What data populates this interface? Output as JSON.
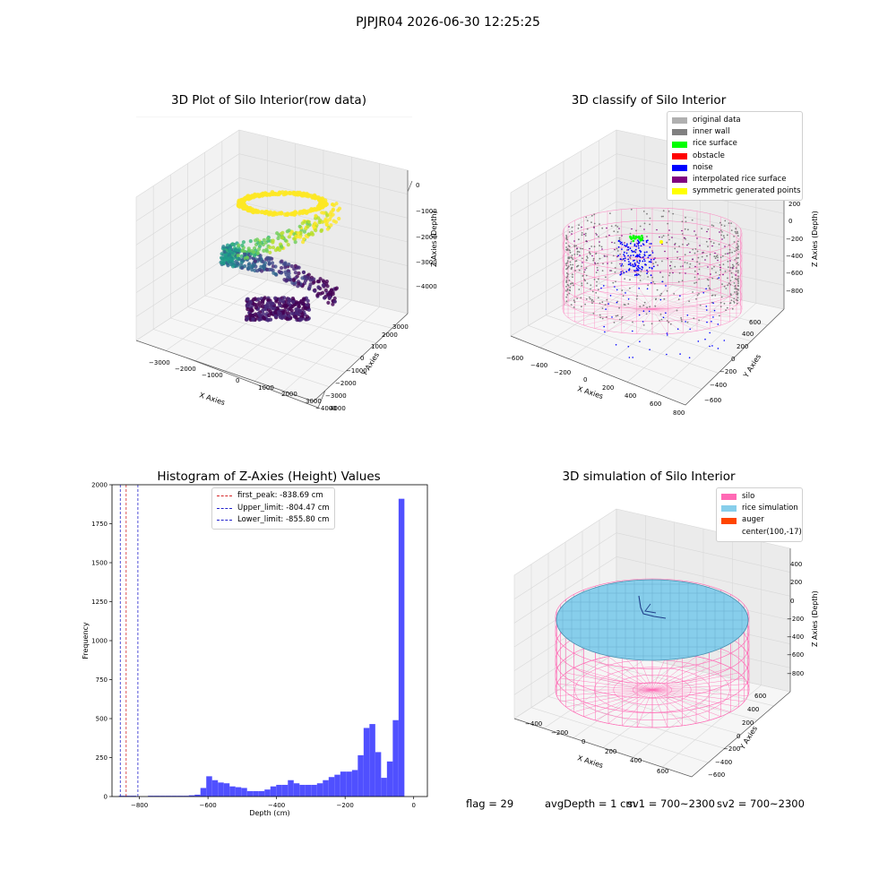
{
  "figure_title": "PJPJR04 2026-06-30 12:25:25",
  "colors": {
    "hist_bar": "#5050ff",
    "peak_line": "#d62728",
    "limit_line": "#2222cc",
    "silo": "#ff69b4",
    "rice": "#87cefa",
    "auger": "#ff4500"
  },
  "panel1": {
    "title": "3D Plot of Silo Interior(row data)",
    "xlabel": "X Axies",
    "ylabel": "Y Axies",
    "zlabel": "Z Axies (Depth)",
    "x_ticks": [
      "−3000",
      "−2000",
      "−1000",
      "0",
      "1000",
      "2000",
      "3000",
      "4000"
    ],
    "y_ticks": [
      "−4000",
      "−3000",
      "−2000",
      "−1000",
      "0",
      "1000",
      "2000",
      "3000"
    ],
    "z_ticks": [
      "0",
      "−1000",
      "−2000",
      "−3000",
      "−4000"
    ]
  },
  "panel2": {
    "title": "3D classify of Silo Interior",
    "xlabel": "X Axies",
    "ylabel": "Y Axies",
    "zlabel": "Z Axies (Depth)",
    "x_ticks": [
      "−600",
      "−400",
      "−200",
      "0",
      "200",
      "400",
      "600",
      "800"
    ],
    "y_ticks": [
      "−600",
      "−400",
      "−200",
      "0",
      "200",
      "400",
      "600"
    ],
    "z_ticks": [
      "400",
      "200",
      "0",
      "−200",
      "−400",
      "−600",
      "−800"
    ],
    "legend": [
      {
        "label": "original data",
        "color": "#b0b0b0"
      },
      {
        "label": "inner wall",
        "color": "#808080"
      },
      {
        "label": "rice surface",
        "color": "#00ff00"
      },
      {
        "label": "obstacle",
        "color": "#ff0000"
      },
      {
        "label": "noise",
        "color": "#0000ff"
      },
      {
        "label": "interpolated rice surface",
        "color": "#800080"
      },
      {
        "label": "symmetric generated points",
        "color": "#ffff00"
      }
    ]
  },
  "panel4": {
    "title": "3D simulation of Silo Interior",
    "xlabel": "X Axies",
    "ylabel": "Y Axies",
    "zlabel": "Z Axies (Depth)",
    "x_ticks": [
      "−400",
      "−200",
      "0",
      "200",
      "400",
      "600"
    ],
    "y_ticks": [
      "−600",
      "−400",
      "−200",
      "0",
      "200",
      "400",
      "600"
    ],
    "z_ticks": [
      "400",
      "200",
      "0",
      "−200",
      "−400",
      "−600",
      "−800"
    ],
    "legend": [
      {
        "label": "silo",
        "color": "#ff69b4"
      },
      {
        "label": "rice simulation",
        "color": "#87ceeb"
      },
      {
        "label": "auger",
        "color": "#ff4500"
      },
      {
        "label": "center(100,-17)",
        "color": ""
      }
    ]
  },
  "status": {
    "flag": "flag = 29",
    "avg_depth": "avgDepth = 1 cm",
    "sv1": "sv1 = 700~2300",
    "sv2": "sv2 = 700~2300"
  },
  "chart_data": [
    {
      "type": "bar",
      "title": "Histogram of Z-Axies (Height) Values",
      "xlabel": "Depth (cm)",
      "ylabel": "Frequency",
      "xlim": [
        -880,
        40
      ],
      "ylim": [
        0,
        2000
      ],
      "x_ticks": [
        -800,
        -600,
        -400,
        -200,
        0
      ],
      "y_ticks": [
        0,
        250,
        500,
        750,
        1000,
        1250,
        1500,
        1750,
        2000
      ],
      "bin_width": 17,
      "bin_start": -860,
      "values": [
        5,
        5,
        5,
        0,
        0,
        5,
        5,
        5,
        5,
        5,
        5,
        5,
        8,
        12,
        55,
        130,
        105,
        90,
        85,
        65,
        60,
        55,
        35,
        35,
        35,
        45,
        65,
        75,
        75,
        105,
        85,
        75,
        75,
        75,
        85,
        105,
        125,
        140,
        160,
        160,
        170,
        265,
        440,
        465,
        285,
        120,
        225,
        490,
        1910
      ],
      "vlines": [
        {
          "label": "first_peak: -838.69 cm",
          "x": -838.69,
          "color": "#d62728"
        },
        {
          "label": "Upper_limit: -804.47 cm",
          "x": -804.47,
          "color": "#2222cc"
        },
        {
          "label": "Lower_limit: -855.80 cm",
          "x": -855.8,
          "color": "#2222cc"
        }
      ]
    }
  ]
}
